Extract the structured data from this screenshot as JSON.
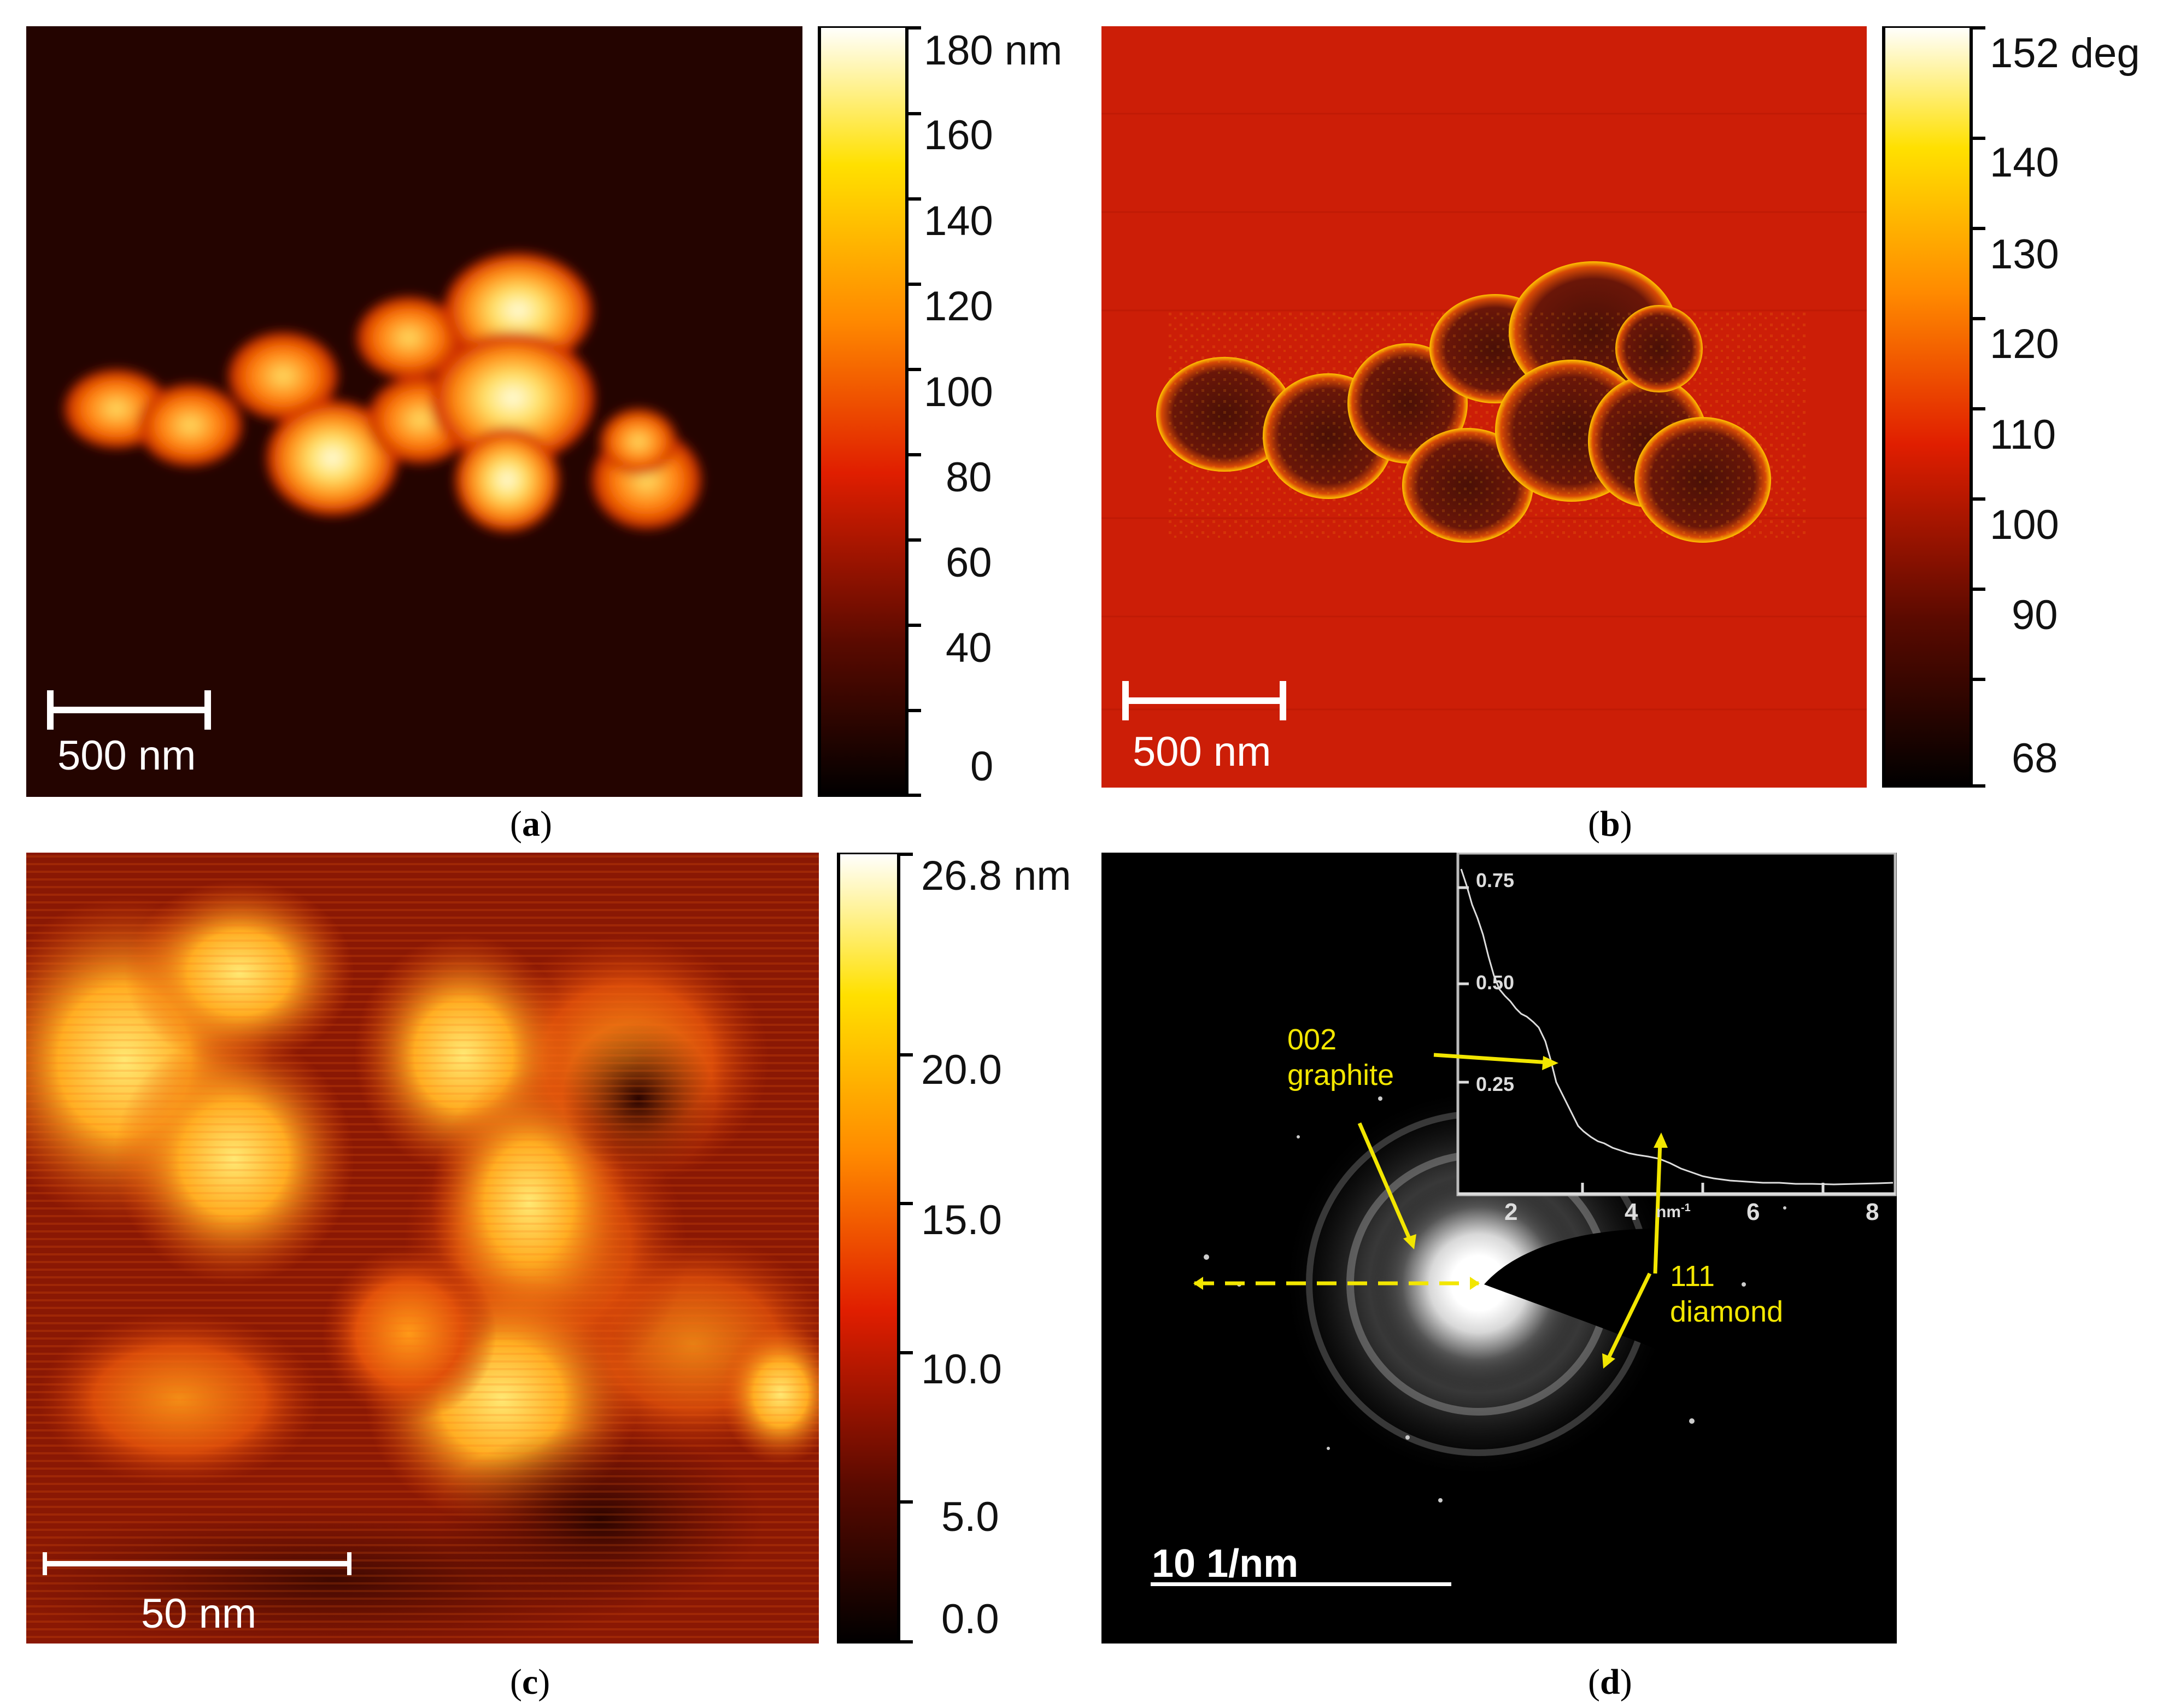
{
  "panels": [
    {
      "id": "a",
      "caption_letter": "a",
      "colorbar": {
        "unit_label": "180 nm",
        "ticks": [
          "160",
          "140",
          "120",
          "100",
          "80",
          "60",
          "40",
          "0"
        ]
      },
      "scale_bar_label": "500 nm",
      "colors": {
        "background": "#240400",
        "low": "#3a0700",
        "mid": "#e03a00",
        "high": "#fff4b0"
      }
    },
    {
      "id": "b",
      "caption_letter": "b",
      "colorbar": {
        "unit_label": "152 deg",
        "ticks": [
          "140",
          "130",
          "120",
          "110",
          "100",
          "90",
          "68"
        ]
      },
      "scale_bar_label": "500 nm",
      "colors": {
        "background": "#cc1e07",
        "particles": "#5a1205",
        "edges": "#ffd200"
      }
    },
    {
      "id": "c",
      "caption_letter": "c",
      "colorbar": {
        "unit_label": "26.8 nm",
        "ticks": [
          "20.0",
          "15.0",
          "10.0",
          "5.0",
          "0.0"
        ]
      },
      "scale_bar_label": "50 nm",
      "colors": {
        "background": "#7a1203",
        "high": "#ffe060"
      }
    },
    {
      "id": "d",
      "caption_letter": "d",
      "scale_bar_label": "10 1/nm",
      "annotations": {
        "graphite": {
          "line1": "002",
          "line2": "graphite"
        },
        "diamond": {
          "line1": "111",
          "line2": "diamond"
        }
      },
      "inset_profile": {
        "y_ticks": [
          "0.75",
          "0.50",
          "0.25"
        ],
        "x_ticks": [
          "2",
          "4",
          "6",
          "8"
        ],
        "x_unit": "nm-1"
      },
      "colors": {
        "background": "#000000",
        "annotation": "#f2e600",
        "profile": "#dddddd"
      }
    }
  ]
}
